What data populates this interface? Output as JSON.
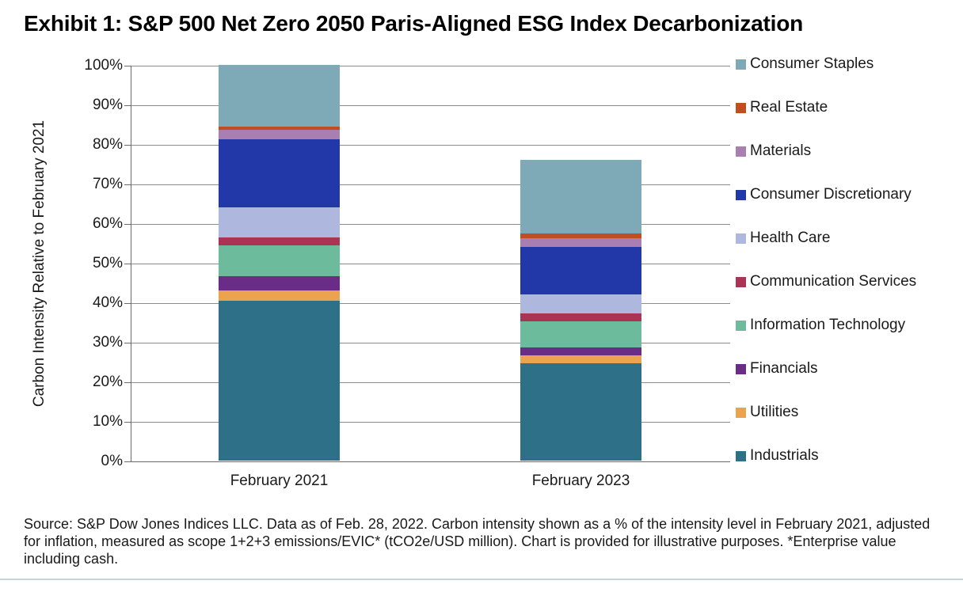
{
  "title": "Exhibit 1: S&P 500 Net Zero 2050 Paris-Aligned ESG Index Decarbonization",
  "source_note": "Source: S&P Dow Jones Indices LLC. Data as of Feb. 28, 2022. Carbon intensity shown as a % of the intensity level in February 2021, adjusted for inflation, measured as scope 1+2+3 emissions/EVIC* (tCO2e/USD million). Chart is provided for illustrative purposes. *Enterprise value including cash.",
  "chart_data": {
    "type": "bar",
    "stacked": true,
    "ylabel": "Carbon Intensity Relative to February 2021",
    "xlabel": "",
    "ylim": [
      0,
      100
    ],
    "ytick_labels": [
      "0%",
      "10%",
      "20%",
      "30%",
      "40%",
      "50%",
      "60%",
      "70%",
      "80%",
      "90%",
      "100%"
    ],
    "grid": true,
    "legend_position": "right",
    "categories": [
      "February 2021",
      "February 2023"
    ],
    "series": [
      {
        "name": "Industrials",
        "color": "#2D7088",
        "values": [
          40.5,
          24.7
        ]
      },
      {
        "name": "Utilities",
        "color": "#EBA34F",
        "values": [
          2.5,
          2.0
        ]
      },
      {
        "name": "Financials",
        "color": "#692D87",
        "values": [
          3.7,
          2.0
        ]
      },
      {
        "name": "Information Technology",
        "color": "#6CBB9C",
        "values": [
          7.8,
          6.6
        ]
      },
      {
        "name": "Communication Services",
        "color": "#AB3353",
        "values": [
          2.0,
          2.0
        ]
      },
      {
        "name": "Health Care",
        "color": "#AEB8DF",
        "values": [
          7.5,
          4.8
        ]
      },
      {
        "name": "Consumer Discretionary",
        "color": "#2338A8",
        "values": [
          17.3,
          12.0
        ]
      },
      {
        "name": "Materials",
        "color": "#A97FB2",
        "values": [
          2.4,
          2.2
        ]
      },
      {
        "name": "Real Estate",
        "color": "#C24E20",
        "values": [
          0.8,
          1.2
        ]
      },
      {
        "name": "Consumer Staples",
        "color": "#7EA9B7",
        "values": [
          15.5,
          18.5
        ]
      }
    ],
    "bar_totals": [
      100,
      76
    ],
    "legend_order_top_to_bottom": [
      "Consumer Staples",
      "Real Estate",
      "Materials",
      "Consumer Discretionary",
      "Health Care",
      "Communication Services",
      "Information Technology",
      "Financials",
      "Utilities",
      "Industrials"
    ]
  },
  "colors": {
    "gridline": "#8C8C8C",
    "axis": "#6B6B6B",
    "text": "#1a1a1a",
    "bottom_rule": "#C4D3DC"
  }
}
